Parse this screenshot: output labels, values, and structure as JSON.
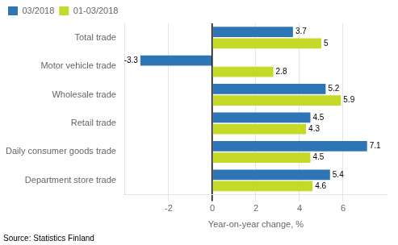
{
  "chart_data": {
    "type": "bar",
    "orientation": "horizontal",
    "categories": [
      "Department store trade",
      "Daily consumer goods trade",
      "Retail trade",
      "Wholesale trade",
      "Motor vehicle trade",
      "Total trade"
    ],
    "series": [
      {
        "name": "03/2018",
        "color": "#2E75B6",
        "values": [
          5.4,
          7.1,
          4.5,
          5.2,
          -3.3,
          3.7
        ]
      },
      {
        "name": "01-03/2018",
        "color": "#C5D928",
        "values": [
          4.6,
          4.5,
          4.3,
          5.9,
          2.8,
          5.0
        ]
      }
    ],
    "xlabel": "Year-on-year change, %",
    "xlim": [
      -4,
      8
    ],
    "xticks": [
      -2,
      0,
      2,
      4,
      6
    ],
    "grid": true,
    "legend": "upper left",
    "data_labels": true,
    "annotation": "Source: Statistics Finland"
  }
}
